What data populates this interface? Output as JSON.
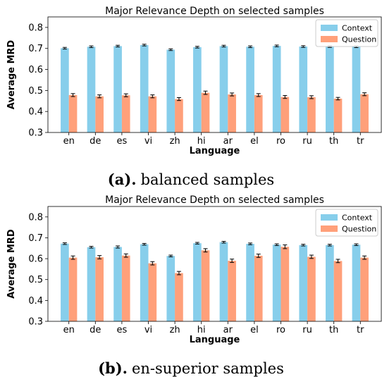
{
  "colors": {
    "context": "#87ceeb",
    "question": "#ffa07a",
    "errorbar": "#000000"
  },
  "chart_data": [
    {
      "type": "bar",
      "title": "Major Relevance Depth on selected samples",
      "xlabel": "Language",
      "ylabel": "Average MRD",
      "ylim": [
        0.3,
        0.85
      ],
      "yticks": [
        0.3,
        0.4,
        0.5,
        0.6,
        0.7,
        0.8
      ],
      "ytick_labels": [
        "0.3",
        "0.4",
        "0.5",
        "0.6",
        "0.7",
        "0.8"
      ],
      "legend_placement": "top-right",
      "grid": false,
      "error_bars": true,
      "categories": [
        "en",
        "de",
        "es",
        "vi",
        "zh",
        "hi",
        "ar",
        "el",
        "ro",
        "ru",
        "th",
        "tr"
      ],
      "series": [
        {
          "name": "Context",
          "values": [
            0.701,
            0.708,
            0.711,
            0.716,
            0.694,
            0.706,
            0.711,
            0.708,
            0.712,
            0.709,
            0.709,
            0.708
          ],
          "errors": [
            0.004,
            0.004,
            0.004,
            0.004,
            0.004,
            0.004,
            0.004,
            0.004,
            0.004,
            0.004,
            0.004,
            0.004
          ]
        },
        {
          "name": "Question",
          "values": [
            0.478,
            0.472,
            0.477,
            0.472,
            0.459,
            0.489,
            0.481,
            0.478,
            0.469,
            0.468,
            0.461,
            0.482
          ],
          "errors": [
            0.007,
            0.007,
            0.007,
            0.007,
            0.007,
            0.008,
            0.007,
            0.007,
            0.007,
            0.007,
            0.006,
            0.007
          ]
        }
      ],
      "caption_label": "(a).",
      "caption_text": "balanced samples"
    },
    {
      "type": "bar",
      "title": "Major Relevance Depth on selected samples",
      "xlabel": "Language",
      "ylabel": "Average MRD",
      "ylim": [
        0.3,
        0.85
      ],
      "yticks": [
        0.3,
        0.4,
        0.5,
        0.6,
        0.7,
        0.8
      ],
      "ytick_labels": [
        "0.3",
        "0.4",
        "0.5",
        "0.6",
        "0.7",
        "0.8"
      ],
      "legend_placement": "top-right",
      "grid": false,
      "error_bars": true,
      "categories": [
        "en",
        "de",
        "es",
        "vi",
        "zh",
        "hi",
        "ar",
        "el",
        "ro",
        "ru",
        "th",
        "tr"
      ],
      "series": [
        {
          "name": "Context",
          "values": [
            0.672,
            0.655,
            0.656,
            0.669,
            0.613,
            0.674,
            0.679,
            0.671,
            0.667,
            0.665,
            0.665,
            0.667
          ],
          "errors": [
            0.004,
            0.004,
            0.005,
            0.004,
            0.004,
            0.004,
            0.004,
            0.004,
            0.004,
            0.004,
            0.004,
            0.004
          ]
        },
        {
          "name": "Question",
          "values": [
            0.605,
            0.607,
            0.615,
            0.578,
            0.531,
            0.64,
            0.59,
            0.614,
            0.657,
            0.609,
            0.589,
            0.605
          ],
          "errors": [
            0.008,
            0.008,
            0.008,
            0.008,
            0.008,
            0.008,
            0.008,
            0.008,
            0.009,
            0.008,
            0.008,
            0.008
          ]
        }
      ],
      "caption_label": "(b).",
      "caption_text": "en-superior samples"
    }
  ]
}
